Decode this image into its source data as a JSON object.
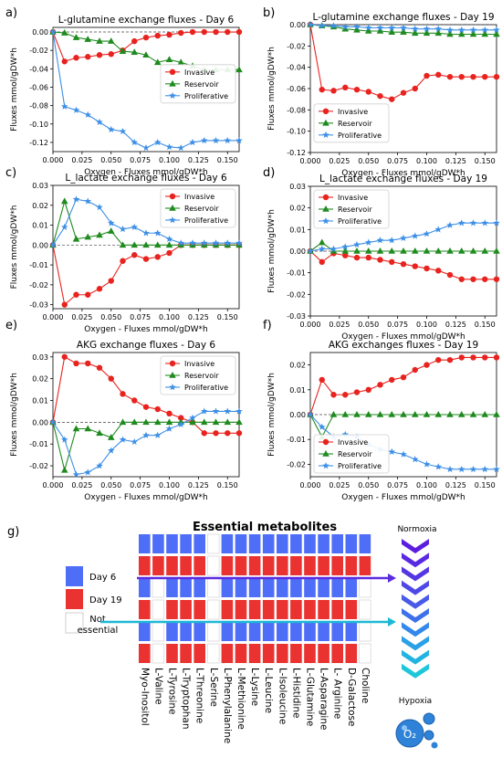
{
  "chart_data": [
    {
      "panel": "a)",
      "type": "line",
      "title": "L-glutamine exchange fluxes - Day 6",
      "xlabel": "Oxygen - Fluxes mmol/gDW*h",
      "ylabel": "Fluxes mmol/gDW*h",
      "xlim": [
        0,
        0.16
      ],
      "ylim": [
        -0.13,
        0.005
      ],
      "xticks": [
        "0.000",
        "0.025",
        "0.050",
        "0.075",
        "0.100",
        "0.125",
        "0.150"
      ],
      "yticks": [
        "0.00",
        "-0.02",
        "-0.04",
        "-0.06",
        "-0.08",
        "-0.10",
        "-0.12"
      ],
      "ytick_values": [
        0,
        -0.02,
        -0.04,
        -0.06,
        -0.08,
        -0.1,
        -0.12
      ],
      "legend": "center-right",
      "x": [
        0,
        0.01,
        0.02,
        0.03,
        0.04,
        0.05,
        0.06,
        0.07,
        0.08,
        0.09,
        0.1,
        0.11,
        0.12,
        0.13,
        0.14,
        0.15,
        0.16
      ],
      "series": [
        {
          "name": "Invasive",
          "values": [
            0,
            -0.032,
            -0.028,
            -0.027,
            -0.025,
            -0.024,
            -0.02,
            -0.01,
            -0.006,
            -0.004,
            -0.003,
            -0.001,
            0,
            0,
            0,
            0,
            0
          ]
        },
        {
          "name": "Reservoir",
          "values": [
            0,
            -0.001,
            -0.006,
            -0.008,
            -0.01,
            -0.01,
            -0.021,
            -0.022,
            -0.025,
            -0.033,
            -0.03,
            -0.033,
            -0.037,
            -0.041,
            -0.041,
            -0.041,
            -0.041
          ]
        },
        {
          "name": "Proliferative",
          "values": [
            0,
            -0.081,
            -0.085,
            -0.09,
            -0.098,
            -0.106,
            -0.108,
            -0.12,
            -0.126,
            -0.12,
            -0.125,
            -0.126,
            -0.12,
            -0.118,
            -0.118,
            -0.118,
            -0.118
          ]
        }
      ]
    },
    {
      "panel": "b)",
      "type": "line",
      "title": "L-glutamine exchange fluxes - Day 19",
      "xlabel": "Oxygen - Fluxes mmol/gDW*h",
      "ylabel": "Fluxes mmol/gDW*h",
      "xlim": [
        0,
        0.16
      ],
      "ylim": [
        -0.12,
        0
      ],
      "xticks": [
        "0.000",
        "0.025",
        "0.050",
        "0.075",
        "0.100",
        "0.125",
        "0.150"
      ],
      "yticks": [
        "0.00",
        "-0.02",
        "-0.04",
        "-0.06",
        "-0.08",
        "-0.10",
        "-0.12"
      ],
      "ytick_values": [
        0,
        -0.02,
        -0.04,
        -0.06,
        -0.08,
        -0.1,
        -0.12
      ],
      "legend": "lower-left",
      "x": [
        0,
        0.01,
        0.02,
        0.03,
        0.04,
        0.05,
        0.06,
        0.07,
        0.08,
        0.09,
        0.1,
        0.11,
        0.12,
        0.13,
        0.14,
        0.15,
        0.16
      ],
      "series": [
        {
          "name": "Invasive",
          "values": [
            0,
            -0.061,
            -0.062,
            -0.059,
            -0.061,
            -0.063,
            -0.067,
            -0.07,
            -0.064,
            -0.06,
            -0.048,
            -0.047,
            -0.049,
            -0.049,
            -0.049,
            -0.049,
            -0.049
          ]
        },
        {
          "name": "Reservoir",
          "values": [
            0,
            -0.001,
            -0.002,
            -0.004,
            -0.005,
            -0.006,
            -0.006,
            -0.007,
            -0.007,
            -0.008,
            -0.008,
            -0.008,
            -0.009,
            -0.009,
            -0.009,
            -0.009,
            -0.009
          ]
        },
        {
          "name": "Proliferative",
          "values": [
            0,
            -0.001,
            -0.001,
            -0.002,
            -0.002,
            -0.003,
            -0.003,
            -0.003,
            -0.003,
            -0.004,
            -0.004,
            -0.004,
            -0.005,
            -0.005,
            -0.005,
            -0.005,
            -0.005
          ]
        }
      ]
    },
    {
      "panel": "c)",
      "type": "line",
      "title": "L_lactate exchange fluxes - Day 6",
      "xlabel": "Oxygen - Fluxes mmol/gDW*h",
      "ylabel": "Fluxes mmol/gDW*h",
      "xlim": [
        0,
        0.16
      ],
      "ylim": [
        -0.032,
        0.03
      ],
      "xticks": [
        "0.000",
        "0.025",
        "0.050",
        "0.075",
        "0.100",
        "0.125",
        "0.150"
      ],
      "yticks": [
        "0.03",
        "0.02",
        "0.01",
        "0.00",
        "-0.01",
        "-0.02",
        "-0.03"
      ],
      "ytick_values": [
        0.03,
        0.02,
        0.01,
        0,
        -0.01,
        -0.02,
        -0.03
      ],
      "legend": "top-right",
      "x": [
        0,
        0.01,
        0.02,
        0.03,
        0.04,
        0.05,
        0.06,
        0.07,
        0.08,
        0.09,
        0.1,
        0.11,
        0.12,
        0.13,
        0.14,
        0.15,
        0.16
      ],
      "series": [
        {
          "name": "Invasive",
          "values": [
            0,
            -0.03,
            -0.025,
            -0.025,
            -0.022,
            -0.018,
            -0.008,
            -0.005,
            -0.007,
            -0.006,
            -0.004,
            0,
            0,
            0,
            0,
            0,
            0
          ]
        },
        {
          "name": "Reservoir",
          "values": [
            0,
            0.022,
            0.003,
            0.004,
            0.005,
            0.007,
            0,
            0,
            0,
            0,
            0,
            0,
            0,
            0,
            0,
            0,
            0
          ]
        },
        {
          "name": "Proliferative",
          "values": [
            0,
            0.009,
            0.023,
            0.022,
            0.019,
            0.011,
            0.008,
            0.009,
            0.006,
            0.006,
            0.003,
            0.001,
            0.001,
            0.001,
            0.001,
            0.001,
            0.001
          ]
        }
      ]
    },
    {
      "panel": "d)",
      "type": "line",
      "title": "L_lactate exchange fluxes - Day 19",
      "xlabel": "Oxygen - Fluxes mmol/gDW*h",
      "ylabel": "Fluxes mmol/gDW*h",
      "xlim": [
        0,
        0.16
      ],
      "ylim": [
        -0.03,
        0.03
      ],
      "xticks": [
        "0.000",
        "0.025",
        "0.050",
        "0.075",
        "0.100",
        "0.125",
        "0.150"
      ],
      "yticks": [
        "0.03",
        "0.02",
        "0.01",
        "0.00",
        "-0.01",
        "-0.02",
        "-0.03"
      ],
      "ytick_values": [
        0.03,
        0.02,
        0.01,
        0,
        -0.01,
        -0.02,
        -0.03
      ],
      "legend": "top-left",
      "x": [
        0,
        0.01,
        0.02,
        0.03,
        0.04,
        0.05,
        0.06,
        0.07,
        0.08,
        0.09,
        0.1,
        0.11,
        0.12,
        0.13,
        0.14,
        0.15,
        0.16
      ],
      "series": [
        {
          "name": "Invasive",
          "values": [
            0,
            -0.005,
            -0.001,
            -0.002,
            -0.003,
            -0.003,
            -0.004,
            -0.005,
            -0.006,
            -0.007,
            -0.008,
            -0.009,
            -0.011,
            -0.013,
            -0.013,
            -0.013,
            -0.013
          ]
        },
        {
          "name": "Reservoir",
          "values": [
            0,
            0.004,
            0,
            0,
            0,
            0,
            0,
            0,
            0,
            0,
            0,
            0,
            0,
            0,
            0,
            0,
            0
          ]
        },
        {
          "name": "Proliferative",
          "values": [
            0,
            0.001,
            0.001,
            0.002,
            0.003,
            0.004,
            0.005,
            0.005,
            0.006,
            0.007,
            0.008,
            0.01,
            0.012,
            0.013,
            0.013,
            0.013,
            0.013
          ]
        }
      ]
    },
    {
      "panel": "e)",
      "type": "line",
      "title": "AKG exchange fluxes - Day 6",
      "xlabel": "Oxygen - Fluxes mmol/gDW*h",
      "ylabel": "Fluxes mmol/gDW*h",
      "xlim": [
        0,
        0.16
      ],
      "ylim": [
        -0.025,
        0.032
      ],
      "xticks": [
        "0.000",
        "0.025",
        "0.050",
        "0.075",
        "0.100",
        "0.125",
        "0.150"
      ],
      "yticks": [
        "0.03",
        "0.02",
        "0.01",
        "0.00",
        "-0.01",
        "-0.02"
      ],
      "ytick_values": [
        0.03,
        0.02,
        0.01,
        0,
        -0.01,
        -0.02
      ],
      "legend": "top-right",
      "x": [
        0,
        0.01,
        0.02,
        0.03,
        0.04,
        0.05,
        0.06,
        0.07,
        0.08,
        0.09,
        0.1,
        0.11,
        0.12,
        0.13,
        0.14,
        0.15,
        0.16
      ],
      "series": [
        {
          "name": "Invasive",
          "values": [
            0,
            0.03,
            0.027,
            0.027,
            0.025,
            0.02,
            0.013,
            0.01,
            0.007,
            0.006,
            0.004,
            0.002,
            0,
            -0.005,
            -0.005,
            -0.005,
            -0.005
          ]
        },
        {
          "name": "Reservoir",
          "values": [
            0,
            -0.022,
            -0.003,
            -0.003,
            -0.005,
            -0.007,
            0,
            0,
            0,
            0,
            0,
            0,
            0,
            0,
            0,
            0,
            0
          ]
        },
        {
          "name": "Proliferative",
          "values": [
            0,
            -0.008,
            -0.024,
            -0.023,
            -0.02,
            -0.013,
            -0.008,
            -0.009,
            -0.006,
            -0.006,
            -0.003,
            -0.001,
            0.002,
            0.005,
            0.005,
            0.005,
            0.005
          ]
        }
      ]
    },
    {
      "panel": "f)",
      "type": "line",
      "title": "AKG exchanges fluxes - Day 19",
      "xlabel": "Oxygen - Fluxes mmol/gDW*h",
      "ylabel": "Fluxes mmol/gDW*h",
      "xlim": [
        0,
        0.16
      ],
      "ylim": [
        -0.025,
        0.025
      ],
      "xticks": [
        "0.000",
        "0.025",
        "0.050",
        "0.075",
        "0.100",
        "0.125",
        "0.150"
      ],
      "yticks": [
        "0.02",
        "0.01",
        "0.00",
        "-0.01",
        "-0.02"
      ],
      "ytick_values": [
        0.02,
        0.01,
        0,
        -0.01,
        -0.02
      ],
      "legend": "bottom-left",
      "x": [
        0,
        0.01,
        0.02,
        0.03,
        0.04,
        0.05,
        0.06,
        0.07,
        0.08,
        0.09,
        0.1,
        0.11,
        0.12,
        0.13,
        0.14,
        0.15,
        0.16
      ],
      "series": [
        {
          "name": "Invasive",
          "values": [
            0,
            0.014,
            0.008,
            0.008,
            0.009,
            0.01,
            0.012,
            0.014,
            0.015,
            0.018,
            0.02,
            0.022,
            0.022,
            0.023,
            0.023,
            0.023,
            0.023
          ]
        },
        {
          "name": "Reservoir",
          "values": [
            0,
            -0.009,
            0,
            0,
            0,
            0,
            0,
            0,
            0,
            0,
            0,
            0,
            0,
            0,
            0,
            0,
            0
          ]
        },
        {
          "name": "Proliferative",
          "values": [
            0,
            -0.005,
            -0.009,
            -0.008,
            -0.009,
            -0.012,
            -0.014,
            -0.015,
            -0.016,
            -0.018,
            -0.02,
            -0.021,
            -0.022,
            -0.022,
            -0.022,
            -0.022,
            -0.022
          ]
        }
      ]
    }
  ],
  "series_colors": {
    "Invasive": "#e8231f",
    "Reservoir": "#1f8b1f",
    "Proliferative": "#3d8fe6"
  },
  "panel_g": {
    "label": "g)",
    "title": "Essential metabolites",
    "legend": [
      {
        "label": "Day 6",
        "color": "#4f6ef7"
      },
      {
        "label": "Day 19",
        "color": "#ea3230"
      },
      {
        "label": "Not essential",
        "color": "#ffffff"
      }
    ],
    "metabolites": [
      "Myo-Inositol",
      "L-Valine",
      "L-Tyrosine",
      "L-Tryptophan",
      "L-Threonine",
      "L-Serine",
      "L-Phenylalanine",
      "L-Methionine",
      "L-Lysine",
      "L-Leucine",
      "L-Isoleucine",
      "L-Histidine",
      "L-Glutamine",
      "L-Asparagine",
      "L- Arginine",
      "D-Galactose",
      "Choline"
    ],
    "rows": [
      [
        "B",
        "B",
        "B",
        "B",
        "B",
        "W",
        "B",
        "B",
        "B",
        "B",
        "B",
        "B",
        "B",
        "B",
        "B",
        "B",
        "B"
      ],
      [
        "R",
        "R",
        "R",
        "R",
        "R",
        "W",
        "R",
        "R",
        "R",
        "R",
        "R",
        "R",
        "R",
        "R",
        "R",
        "R",
        "R"
      ],
      [
        "B",
        "W",
        "B",
        "B",
        "B",
        "W",
        "B",
        "B",
        "B",
        "B",
        "B",
        "B",
        "B",
        "B",
        "B",
        "B",
        "W"
      ],
      [
        "R",
        "W",
        "R",
        "R",
        "R",
        "W",
        "R",
        "R",
        "R",
        "R",
        "R",
        "R",
        "R",
        "R",
        "R",
        "R",
        "W"
      ],
      [
        "B",
        "W",
        "B",
        "B",
        "B",
        "W",
        "B",
        "B",
        "B",
        "B",
        "B",
        "B",
        "B",
        "B",
        "B",
        "B",
        "W"
      ],
      [
        "R",
        "W",
        "R",
        "R",
        "R",
        "W",
        "R",
        "R",
        "R",
        "R",
        "R",
        "R",
        "R",
        "R",
        "R",
        "R",
        "W"
      ]
    ],
    "normoxia_label": "Normoxia",
    "hypoxia_label": "Hypoxia",
    "hypoxia_bubble_text": "O₂"
  }
}
